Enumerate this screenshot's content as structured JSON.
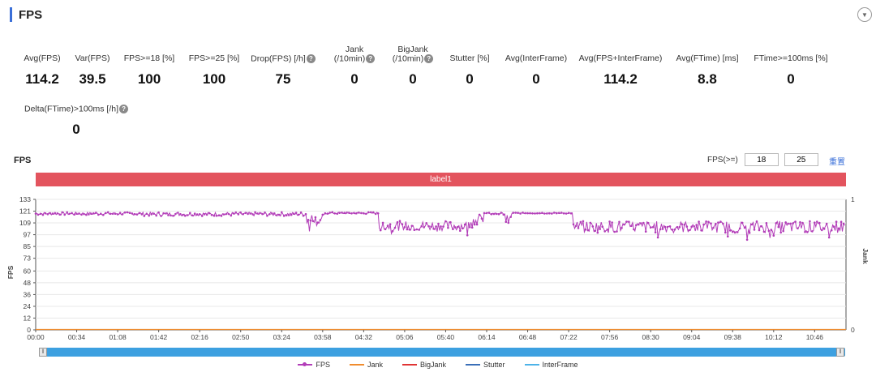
{
  "header": {
    "title": "FPS"
  },
  "metrics_row1": [
    {
      "label": "Avg(FPS)",
      "value": "114.2",
      "help": false
    },
    {
      "label": "Var(FPS)",
      "value": "39.5",
      "help": false
    },
    {
      "label": "FPS>=18 [%]",
      "value": "100",
      "help": false
    },
    {
      "label": "FPS>=25 [%]",
      "value": "100",
      "help": false
    },
    {
      "label": "Drop(FPS) [/h]",
      "value": "75",
      "help": true
    },
    {
      "label": "Jank",
      "label2": "(/10min)",
      "value": "0",
      "help": true
    },
    {
      "label": "BigJank",
      "label2": "(/10min)",
      "value": "0",
      "help": true
    },
    {
      "label": "Stutter [%]",
      "value": "0",
      "help": false
    },
    {
      "label": "Avg(InterFrame)",
      "value": "0",
      "help": false
    },
    {
      "label": "Avg(FPS+InterFrame)",
      "value": "114.2",
      "help": false
    },
    {
      "label": "Avg(FTime) [ms]",
      "value": "8.8",
      "help": false
    },
    {
      "label": "FTime>=100ms [%]",
      "value": "0",
      "help": false
    }
  ],
  "metrics_row2": [
    {
      "label": "Delta(FTime)>100ms [/h]",
      "value": "0",
      "help": true
    }
  ],
  "chart_section": {
    "title": "FPS",
    "filter_label": "FPS(>=)",
    "filter_value1": "18",
    "filter_value2": "25",
    "reset_label": "重置",
    "band_label": "label1"
  },
  "chart_data": {
    "type": "line",
    "ylabel": "FPS",
    "y2label": "Jank",
    "ylim": [
      0,
      133
    ],
    "y_ticks": [
      "0",
      "12",
      "24",
      "36",
      "48",
      "60",
      "73",
      "85",
      "97",
      "109",
      "121",
      "133"
    ],
    "y2_ticks": [
      "0",
      "1"
    ],
    "x_ticks": [
      "00:00",
      "00:34",
      "01:08",
      "01:42",
      "02:16",
      "02:50",
      "03:24",
      "03:58",
      "04:32",
      "05:06",
      "05:40",
      "06:14",
      "06:48",
      "07:22",
      "07:56",
      "08:30",
      "09:04",
      "09:38",
      "10:12",
      "10:46"
    ],
    "x_range_seconds": [
      0,
      672
    ],
    "fps_segments": [
      {
        "t_start": 0,
        "t_end": 90,
        "base": 118.5,
        "noise": 1.5
      },
      {
        "t_start": 90,
        "t_end": 225,
        "base": 118,
        "noise": 2
      },
      {
        "t_start": 225,
        "t_end": 240,
        "base": 112,
        "noise": 6
      },
      {
        "t_start": 240,
        "t_end": 285,
        "base": 119,
        "noise": 1
      },
      {
        "t_start": 285,
        "t_end": 360,
        "base": 106,
        "noise": 5
      },
      {
        "t_start": 360,
        "t_end": 372,
        "base": 112,
        "noise": 6
      },
      {
        "t_start": 372,
        "t_end": 390,
        "base": 118.5,
        "noise": 1
      },
      {
        "t_start": 390,
        "t_end": 395,
        "base": 112,
        "noise": 5
      },
      {
        "t_start": 395,
        "t_end": 446,
        "base": 119,
        "noise": 0.5
      },
      {
        "t_start": 446,
        "t_end": 672,
        "base": 105,
        "noise": 6
      }
    ],
    "series": [
      {
        "name": "FPS",
        "color": "#b23db8"
      },
      {
        "name": "Jank",
        "color": "#f08c2e"
      },
      {
        "name": "BigJank",
        "color": "#e03434"
      },
      {
        "name": "Stutter",
        "color": "#3a6fb8"
      },
      {
        "name": "InterFrame",
        "color": "#4db3e8"
      }
    ],
    "jank_values": "all 0",
    "legend_position": "bottom-center"
  }
}
